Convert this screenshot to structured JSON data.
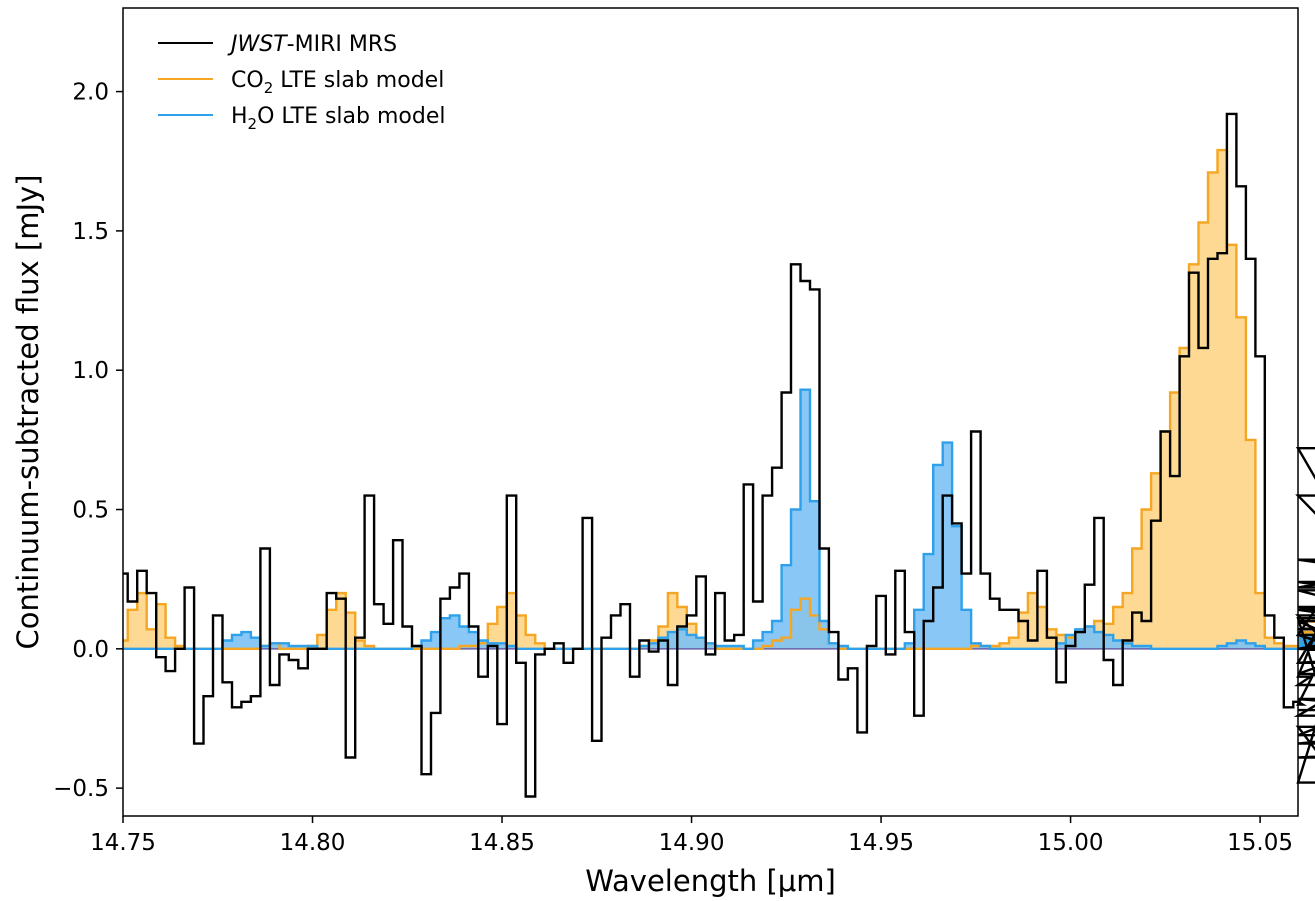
{
  "chart_data": {
    "type": "line",
    "drawstyle": "steps-mid",
    "xlabel": "Wavelength [μm]",
    "ylabel": "Continuum-subtracted flux [mJy]",
    "xlim": [
      14.75,
      15.06
    ],
    "ylim": [
      -0.6,
      2.3
    ],
    "x_ticks": [
      14.75,
      14.8,
      14.85,
      14.9,
      14.95,
      15.0,
      15.05
    ],
    "x_tick_labels": [
      "14.75",
      "14.80",
      "14.85",
      "14.90",
      "14.95",
      "15.00",
      "15.05"
    ],
    "y_ticks": [
      -0.5,
      0.0,
      0.5,
      1.0,
      1.5,
      2.0
    ],
    "y_tick_labels": [
      "−0.5",
      "0.0",
      "0.5",
      "1.0",
      "1.5",
      "2.0"
    ],
    "grid": false,
    "legend_position": "top-left",
    "x_start": 14.75,
    "x_step": 0.0025,
    "series": [
      {
        "id": "data",
        "name": "JWST-MIRI MRS",
        "color": "#000000",
        "fill": false,
        "values": [
          0.27,
          0.17,
          0.28,
          0.2,
          -0.03,
          -0.08,
          0.0,
          0.22,
          -0.34,
          -0.17,
          0.12,
          -0.12,
          -0.21,
          -0.19,
          -0.17,
          0.36,
          -0.13,
          -0.02,
          -0.04,
          -0.07,
          0.0,
          0.0,
          0.2,
          0.18,
          -0.39,
          0.04,
          0.55,
          0.16,
          0.09,
          0.39,
          0.08,
          0.01,
          -0.45,
          -0.23,
          0.18,
          0.22,
          0.27,
          0.08,
          -0.1,
          0.01,
          -0.27,
          0.55,
          -0.05,
          -0.53,
          -0.02,
          0.0,
          0.02,
          -0.05,
          0.0,
          0.47,
          -0.33,
          0.04,
          0.12,
          0.16,
          -0.1,
          0.03,
          -0.01,
          0.03,
          -0.13,
          0.08,
          0.12,
          0.26,
          -0.02,
          0.2,
          0.03,
          0.05,
          0.59,
          0.17,
          0.55,
          0.65,
          0.92,
          1.38,
          1.32,
          1.29,
          0.36,
          0.06,
          -0.11,
          -0.07,
          -0.3,
          0.01,
          0.19,
          -0.02,
          0.28,
          0.06,
          -0.24,
          0.1,
          0.22,
          0.55,
          0.45,
          0.27,
          0.78,
          0.27,
          0.18,
          0.14,
          0.14,
          0.1,
          0.03,
          0.28,
          0.04,
          -0.12,
          0.01,
          0.06,
          0.23,
          0.47,
          -0.04,
          -0.13,
          0.03,
          0.13,
          0.1,
          0.46,
          0.78,
          0.62,
          1.05,
          1.35,
          1.08,
          1.4,
          1.42,
          1.92,
          1.66,
          1.4,
          1.05,
          0.12,
          0.04,
          -0.21,
          -0.19,
          -0.2,
          -0.1,
          0.11,
          -0.28,
          -0.48,
          0.12,
          -0.09,
          0.0,
          0.05,
          -0.05,
          0.55,
          0.15,
          0.05,
          0.72,
          -0.13,
          0.22,
          0.32,
          0.24,
          0.14,
          0.05,
          -0.18,
          -0.24,
          0.21,
          0.0,
          -0.05,
          0.0,
          0.1,
          -0.31,
          0.07,
          0.15,
          0.1,
          -0.39,
          -0.34,
          -0.22
        ]
      },
      {
        "id": "co2",
        "name": "CO2 LTE slab model",
        "name_main": "CO",
        "name_sub": "2",
        "name_rest": " LTE slab model",
        "color": "#f5a623",
        "fill_color": "#fdd587",
        "fill": true,
        "values": [
          0.03,
          0.14,
          0.2,
          0.07,
          0.16,
          0.04,
          0.01,
          0.0,
          0.0,
          0.0,
          0.0,
          0.0,
          0.0,
          0.0,
          0.0,
          0.01,
          0.02,
          0.0,
          0.0,
          0.0,
          0.01,
          0.05,
          0.14,
          0.2,
          0.13,
          0.03,
          0.01,
          0.0,
          0.0,
          0.0,
          0.0,
          0.0,
          0.0,
          0.0,
          0.0,
          0.0,
          0.01,
          0.01,
          0.02,
          0.09,
          0.15,
          0.2,
          0.12,
          0.05,
          0.02,
          0.0,
          0.0,
          0.0,
          0.0,
          0.0,
          0.0,
          0.0,
          0.0,
          0.0,
          0.0,
          0.01,
          0.03,
          0.08,
          0.2,
          0.15,
          0.09,
          0.04,
          0.02,
          0.0,
          0.0,
          0.0,
          0.0,
          0.0,
          0.01,
          0.03,
          0.04,
          0.14,
          0.18,
          0.12,
          0.07,
          0.02,
          0.0,
          0.0,
          0.0,
          0.0,
          0.0,
          0.0,
          0.0,
          0.0,
          0.0,
          0.0,
          0.0,
          0.0,
          0.0,
          0.0,
          0.01,
          0.01,
          0.01,
          0.02,
          0.04,
          0.13,
          0.2,
          0.15,
          0.07,
          0.05,
          0.04,
          0.06,
          0.08,
          0.1,
          0.09,
          0.15,
          0.2,
          0.36,
          0.5,
          0.63,
          0.78,
          0.92,
          1.08,
          1.38,
          1.53,
          1.71,
          1.79,
          1.45,
          1.19,
          0.75,
          0.2,
          0.04,
          0.02,
          0.01,
          0.01,
          0.01,
          0.03,
          0.01,
          0.01,
          0.0,
          0.0,
          0.0,
          0.0,
          0.01,
          0.01,
          0.02,
          0.03,
          0.02,
          0.03,
          0.06,
          0.04,
          0.03,
          0.02,
          0.01,
          0.0,
          0.0,
          0.0,
          0.01,
          0.02,
          0.04,
          0.02,
          0.01,
          0.0,
          0.01,
          0.04,
          0.05,
          0.1,
          0.06,
          0.04
        ]
      },
      {
        "id": "h2o",
        "name": "H2O LTE slab model",
        "name_main": "H",
        "name_sub": "2",
        "name_rest": "O LTE slab model",
        "color": "#2ea1ea",
        "fill_color": "#7cc1f5",
        "fill": true,
        "values": [
          0.0,
          0.0,
          0.0,
          0.0,
          0.0,
          0.0,
          0.0,
          0.0,
          0.0,
          0.0,
          0.0,
          0.03,
          0.05,
          0.06,
          0.04,
          0.01,
          0.02,
          0.02,
          0.01,
          0.01,
          0.01,
          0.0,
          0.0,
          0.0,
          0.0,
          0.0,
          0.0,
          0.0,
          0.0,
          0.0,
          0.0,
          0.01,
          0.03,
          0.06,
          0.11,
          0.12,
          0.08,
          0.06,
          0.03,
          0.02,
          0.02,
          0.01,
          0.0,
          0.0,
          0.0,
          0.0,
          0.0,
          0.0,
          0.0,
          0.0,
          0.0,
          0.0,
          0.0,
          0.0,
          0.0,
          0.01,
          0.02,
          0.04,
          0.06,
          0.07,
          0.05,
          0.04,
          0.02,
          0.01,
          0.01,
          0.01,
          0.0,
          0.03,
          0.06,
          0.1,
          0.3,
          0.5,
          0.93,
          0.53,
          0.1,
          0.02,
          0.01,
          0.0,
          0.0,
          0.0,
          0.0,
          0.0,
          0.0,
          0.02,
          0.14,
          0.34,
          0.66,
          0.74,
          0.44,
          0.14,
          0.02,
          0.01,
          0.0,
          0.0,
          0.0,
          0.0,
          0.0,
          0.0,
          0.0,
          0.02,
          0.05,
          0.07,
          0.08,
          0.06,
          0.05,
          0.03,
          0.02,
          0.01,
          0.01,
          0.0,
          0.0,
          0.0,
          0.0,
          0.0,
          0.0,
          0.0,
          0.01,
          0.02,
          0.03,
          0.02,
          0.01,
          0.0,
          0.0,
          0.0,
          0.0,
          0.0,
          0.0,
          0.0,
          0.0,
          0.0,
          0.0,
          0.0,
          0.0,
          0.01,
          0.02,
          0.03,
          0.04,
          0.05,
          0.04,
          0.03,
          0.02,
          0.01,
          0.01,
          0.0,
          0.0,
          0.0,
          0.0,
          0.0,
          0.0,
          0.01,
          0.02,
          0.03,
          0.03,
          0.05,
          0.04,
          0.03,
          0.02,
          0.01
        ]
      }
    ]
  },
  "legend": {
    "data_main": "JWST",
    "data_rest": "-MIRI MRS"
  }
}
